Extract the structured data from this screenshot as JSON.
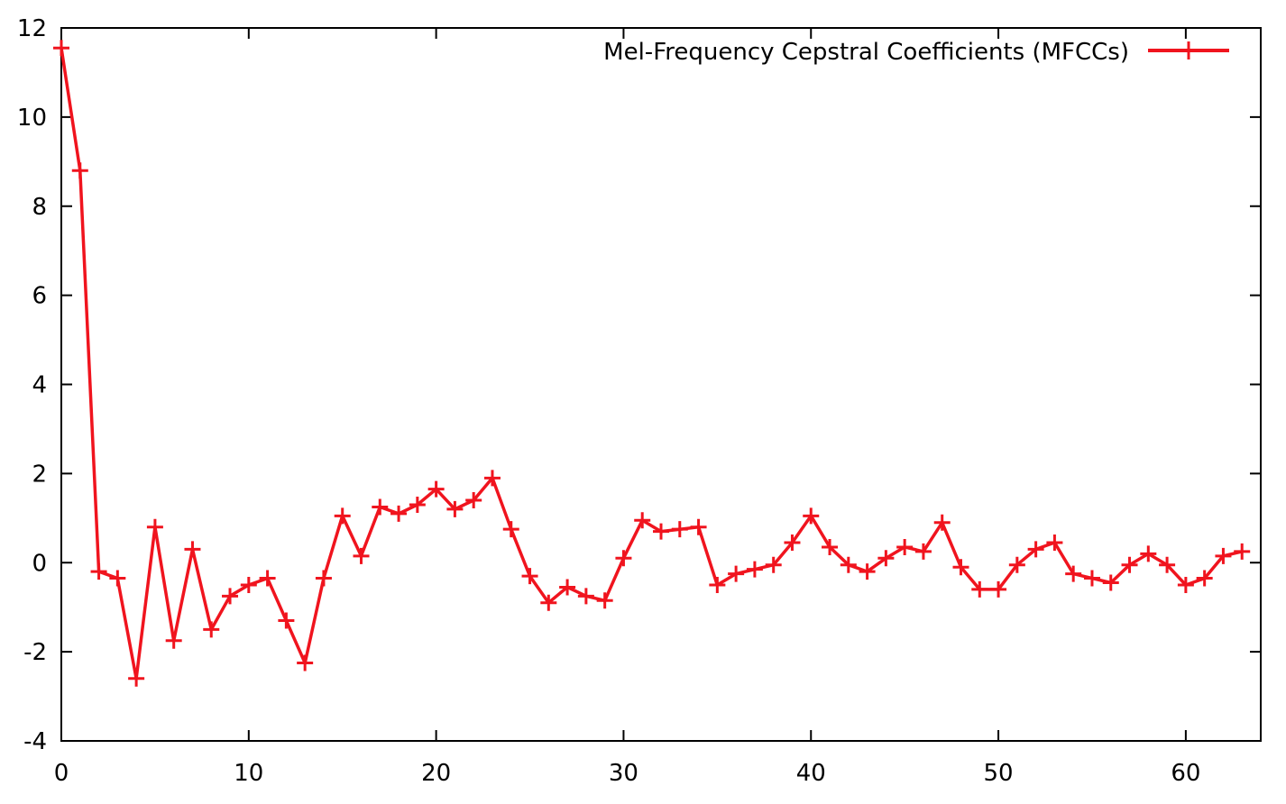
{
  "colors": {
    "series": "#f0141e",
    "axis": "#000000",
    "background": "#ffffff"
  },
  "chart_data": {
    "type": "line",
    "title": "",
    "xlabel": "",
    "ylabel": "",
    "xlim": [
      0,
      64
    ],
    "ylim": [
      -4,
      12
    ],
    "xticks": [
      0,
      10,
      20,
      30,
      40,
      50,
      60
    ],
    "yticks": [
      -4,
      -2,
      0,
      2,
      4,
      6,
      8,
      10,
      12
    ],
    "grid": false,
    "legend": {
      "position": "top-right"
    },
    "marker": "plus",
    "series": [
      {
        "name": "Mel-Frequency Cepstral Coefficients (MFCCs)",
        "x": [
          0,
          1,
          2,
          3,
          4,
          5,
          6,
          7,
          8,
          9,
          10,
          11,
          12,
          13,
          14,
          15,
          16,
          17,
          18,
          19,
          20,
          21,
          22,
          23,
          24,
          25,
          26,
          27,
          28,
          29,
          30,
          31,
          32,
          33,
          34,
          35,
          36,
          37,
          38,
          39,
          40,
          41,
          42,
          43,
          44,
          45,
          46,
          47,
          48,
          49,
          50,
          51,
          52,
          53,
          54,
          55,
          56,
          57,
          58,
          59,
          60,
          61,
          62,
          63
        ],
        "values": [
          11.55,
          8.8,
          -0.2,
          -0.35,
          -2.6,
          0.8,
          -1.75,
          0.3,
          -1.5,
          -0.75,
          -0.5,
          -0.35,
          -1.3,
          -2.25,
          -0.35,
          1.05,
          0.15,
          1.25,
          1.1,
          1.3,
          1.65,
          1.2,
          1.4,
          1.9,
          0.75,
          -0.3,
          -0.9,
          -0.55,
          -0.75,
          -0.85,
          0.1,
          0.95,
          0.7,
          0.75,
          0.8,
          -0.5,
          -0.25,
          -0.15,
          -0.05,
          0.45,
          1.05,
          0.35,
          -0.05,
          -0.2,
          0.1,
          0.35,
          0.25,
          0.9,
          -0.1,
          -0.6,
          -0.6,
          -0.05,
          0.3,
          0.45,
          -0.25,
          -0.35,
          -0.45,
          -0.05,
          0.2,
          -0.05,
          -0.5,
          -0.35,
          0.15,
          0.25
        ]
      }
    ]
  }
}
